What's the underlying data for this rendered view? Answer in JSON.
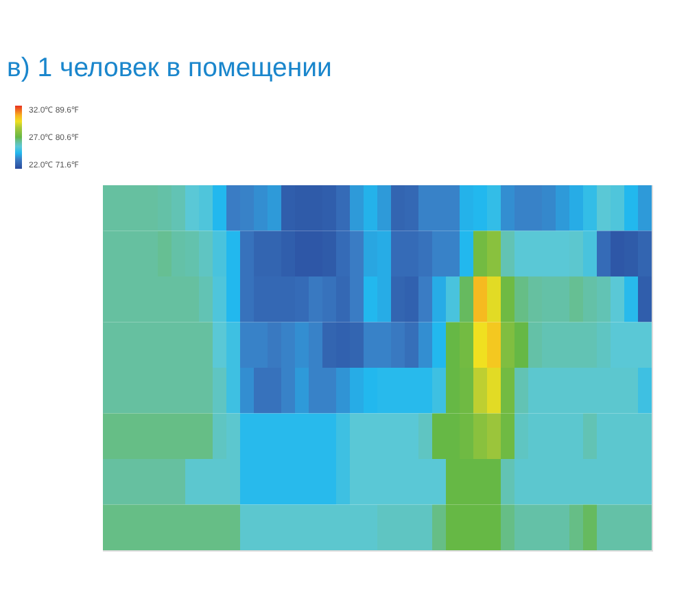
{
  "chart_data": {
    "type": "heatmap",
    "title": "в) 1 человек в помещении",
    "categories": [
      null,
      null,
      null,
      null,
      null,
      null,
      null,
      null,
      null,
      null,
      null,
      null,
      null,
      null,
      null,
      null,
      null,
      null,
      null,
      null,
      null,
      null,
      null,
      null,
      null,
      null,
      null,
      null,
      null,
      null,
      null,
      null,
      null,
      null,
      null,
      null,
      null,
      null,
      null,
      null
    ],
    "y_categories": [
      null,
      null,
      null,
      null,
      null,
      null,
      null,
      null
    ],
    "cells": [
      [
        26.3,
        26.3,
        26.3,
        26.3,
        26.2,
        26.0,
        25.5,
        25.3,
        24.5,
        23.5,
        23.6,
        23.8,
        24.0,
        22.6,
        22.5,
        22.5,
        22.6,
        23.0,
        24.0,
        24.4,
        24.0,
        22.8,
        22.9,
        23.6,
        23.6,
        23.6,
        24.4,
        24.5,
        24.8,
        23.8,
        23.6,
        23.6,
        23.7,
        24.0,
        24.3,
        24.8,
        25.5,
        25.3,
        24.5,
        24.0
      ],
      [
        26.3,
        26.3,
        26.3,
        26.3,
        26.4,
        26.2,
        26.1,
        25.8,
        25.2,
        24.5,
        23.2,
        22.8,
        22.8,
        22.6,
        22.4,
        22.4,
        22.5,
        23.0,
        23.5,
        24.2,
        24.3,
        23.0,
        23.0,
        23.2,
        23.6,
        23.6,
        24.5,
        27.3,
        27.8,
        26.0,
        25.5,
        25.5,
        25.5,
        25.5,
        25.6,
        25.2,
        23.0,
        22.4,
        22.5,
        22.8
      ],
      [
        26.3,
        26.3,
        26.3,
        26.3,
        26.3,
        26.3,
        26.3,
        26.0,
        25.3,
        24.5,
        23.2,
        22.9,
        22.9,
        22.9,
        23.0,
        23.4,
        23.2,
        22.9,
        23.5,
        24.5,
        24.3,
        22.8,
        22.7,
        23.5,
        24.3,
        25.2,
        26.8,
        30.3,
        29.3,
        27.2,
        26.5,
        26.3,
        26.2,
        26.2,
        26.4,
        26.2,
        26.0,
        25.5,
        24.6,
        22.6
      ],
      [
        26.3,
        26.3,
        26.3,
        26.3,
        26.3,
        26.3,
        26.3,
        26.3,
        25.5,
        25.0,
        23.6,
        23.6,
        23.4,
        23.6,
        23.8,
        23.6,
        22.8,
        22.7,
        22.8,
        23.6,
        23.6,
        23.4,
        23.1,
        23.8,
        24.5,
        27.0,
        27.3,
        29.5,
        30.0,
        27.6,
        27.0,
        26.2,
        26.0,
        26.0,
        26.0,
        26.0,
        25.8,
        25.5,
        25.5,
        25.5
      ],
      [
        26.3,
        26.3,
        26.3,
        26.3,
        26.3,
        26.3,
        26.3,
        26.3,
        25.8,
        25.0,
        23.8,
        23.2,
        23.2,
        23.6,
        24.0,
        23.6,
        23.6,
        23.9,
        24.3,
        24.5,
        24.6,
        24.6,
        24.6,
        24.6,
        25.0,
        27.0,
        27.2,
        28.8,
        29.3,
        27.3,
        26.0,
        25.6,
        25.6,
        25.6,
        25.6,
        25.6,
        25.6,
        25.6,
        25.6,
        25.0
      ],
      [
        26.5,
        26.5,
        26.5,
        26.5,
        26.5,
        26.5,
        26.5,
        26.5,
        25.8,
        25.6,
        24.6,
        24.6,
        24.6,
        24.6,
        24.6,
        24.6,
        24.6,
        25.0,
        25.5,
        25.5,
        25.5,
        25.5,
        25.5,
        25.8,
        27.0,
        27.0,
        27.2,
        27.8,
        28.2,
        27.2,
        25.8,
        25.6,
        25.6,
        25.6,
        25.6,
        26.0,
        25.6,
        25.6,
        25.6,
        25.6
      ],
      [
        26.3,
        26.3,
        26.3,
        26.3,
        26.3,
        26.3,
        25.6,
        25.6,
        25.6,
        25.6,
        24.6,
        24.6,
        24.6,
        24.6,
        24.6,
        24.6,
        24.6,
        25.0,
        25.5,
        25.5,
        25.5,
        25.5,
        25.5,
        25.5,
        25.5,
        27.0,
        27.0,
        27.0,
        27.0,
        26.0,
        25.6,
        25.6,
        25.6,
        25.6,
        25.6,
        25.6,
        25.6,
        25.6,
        25.6,
        25.6
      ],
      [
        26.5,
        26.5,
        26.5,
        26.5,
        26.5,
        26.5,
        26.5,
        26.5,
        26.5,
        26.5,
        25.6,
        25.6,
        25.6,
        25.6,
        25.6,
        25.6,
        25.6,
        25.6,
        25.6,
        25.6,
        25.8,
        25.8,
        25.8,
        25.8,
        26.5,
        27.0,
        27.0,
        27.0,
        27.0,
        26.5,
        26.2,
        26.2,
        26.2,
        26.2,
        26.5,
        26.8,
        26.2,
        26.2,
        26.2,
        26.2
      ]
    ],
    "clim": [
      22,
      32
    ],
    "cticks": [
      {
        "value": 32,
        "label": "32.0℃ 89.6℉"
      },
      {
        "value": 27,
        "label": "27.0℃ 80.6℉"
      },
      {
        "value": 22,
        "label": "22.0℃ 71.6℉"
      }
    ],
    "tick_labels": false
  }
}
